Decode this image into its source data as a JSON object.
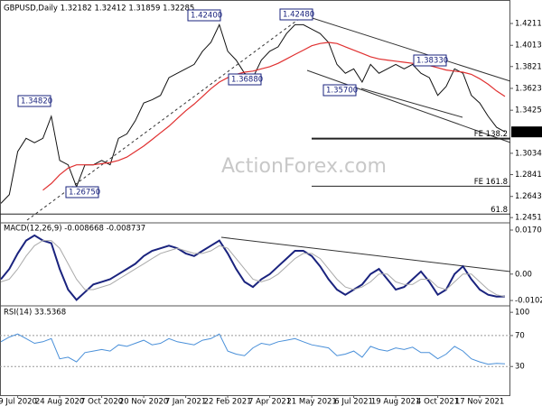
{
  "chart_data": [
    {
      "type": "line",
      "title": "GBPUSD,Daily  1.32182 1.32412 1.31859 1.32285",
      "ylim": [
        1.242,
        1.431
      ],
      "yticks": [
        1.42115,
        1.40135,
        {
          "value": 1.3821,
          "label": "1.38210"
        },
        {
          "value": 1.3623,
          "label": "1.36230"
        },
        {
          "value": 1.3425,
          "label": "1.34250"
        },
        1.30345,
        {
          "value": 1.2841,
          "label": "1.28410"
        },
        {
          "value": 1.2643,
          "label": "1.26430"
        },
        1.24515
      ],
      "last_price": 1.32285,
      "watermark": "ActionForex.com",
      "annotations": [
        "1.42400",
        "1.42480",
        "1.34820",
        "1.26750",
        "1.36880",
        "1.35700",
        "1.38330"
      ],
      "levels": [
        {
          "label": "FE 138.2",
          "value": 1.3168
        },
        {
          "label": "FE 161.8",
          "value": 1.2736
        },
        {
          "label": "61.8",
          "value": 1.2483
        }
      ],
      "series": [
        {
          "color": "#111111",
          "values": [
            1.258,
            1.266,
            1.305,
            1.317,
            1.313,
            1.317,
            1.337,
            1.297,
            1.293,
            1.273,
            1.293,
            1.293,
            1.297,
            1.293,
            1.317,
            1.321,
            1.333,
            1.349,
            1.352,
            1.356,
            1.372,
            1.376,
            1.38,
            1.384,
            1.396,
            1.404,
            1.42,
            1.396,
            1.388,
            1.376,
            1.372,
            1.388,
            1.396,
            1.4,
            1.412,
            1.42,
            1.42,
            1.416,
            1.412,
            1.404,
            1.384,
            1.376,
            1.38,
            1.368,
            1.384,
            1.376,
            1.38,
            1.384,
            1.38,
            1.384,
            1.376,
            1.372,
            1.356,
            1.364,
            1.38,
            1.376,
            1.356,
            1.349,
            1.337,
            1.327,
            1.32285
          ]
        },
        {
          "color": "#e03030",
          "values": [
            null,
            null,
            null,
            null,
            null,
            1.27,
            1.276,
            1.284,
            1.29,
            1.293,
            1.293,
            1.293,
            1.294,
            1.295,
            1.297,
            1.3,
            1.305,
            1.31,
            1.316,
            1.322,
            1.328,
            1.335,
            1.342,
            1.348,
            1.355,
            1.362,
            1.368,
            1.372,
            1.375,
            1.377,
            1.378,
            1.38,
            1.382,
            1.385,
            1.389,
            1.393,
            1.397,
            1.401,
            1.403,
            1.404,
            1.403,
            1.4,
            1.397,
            1.394,
            1.391,
            1.389,
            1.388,
            1.387,
            1.386,
            1.385,
            1.384,
            1.383,
            1.381,
            1.379,
            1.378,
            1.377,
            1.375,
            1.371,
            1.366,
            1.36,
            1.355
          ]
        }
      ]
    },
    {
      "type": "line",
      "title": "MACD(12,26,9) -0.008668 -0.008737",
      "ylim": [
        -0.0116,
        0.0188
      ],
      "yticks": [
        0.017057,
        {
          "value": 0,
          "label": "0.00"
        },
        -0.010219
      ],
      "series": [
        {
          "color": "#1a237e",
          "values": [
            -0.002,
            0.002,
            0.008,
            0.013,
            0.015,
            0.013,
            0.012,
            0.002,
            -0.006,
            -0.01,
            -0.007,
            -0.004,
            -0.003,
            -0.002,
            0,
            0.002,
            0.004,
            0.007,
            0.009,
            0.01,
            0.011,
            0.01,
            0.008,
            0.007,
            0.009,
            0.011,
            0.013,
            0.008,
            0.002,
            -0.003,
            -0.005,
            -0.002,
            0,
            0.003,
            0.006,
            0.009,
            0.009,
            0.007,
            0.003,
            -0.002,
            -0.006,
            -0.008,
            -0.006,
            -0.004,
            0,
            0.002,
            -0.002,
            -0.006,
            -0.005,
            -0.002,
            0.001,
            -0.003,
            -0.008,
            -0.006,
            0,
            0.003,
            -0.002,
            -0.006,
            -0.008,
            -0.0087,
            -0.008668
          ]
        },
        {
          "color": "#aaaaaa",
          "values": [
            -0.003,
            -0.002,
            0.002,
            0.007,
            0.011,
            0.013,
            0.013,
            0.01,
            0.004,
            -0.002,
            -0.006,
            -0.006,
            -0.005,
            -0.004,
            -0.002,
            0,
            0.002,
            0.004,
            0.006,
            0.008,
            0.009,
            0.01,
            0.009,
            0.008,
            0.008,
            0.009,
            0.011,
            0.01,
            0.006,
            0.002,
            -0.002,
            -0.003,
            -0.002,
            0,
            0.003,
            0.006,
            0.008,
            0.008,
            0.006,
            0.002,
            -0.002,
            -0.005,
            -0.006,
            -0.005,
            -0.003,
            0,
            0,
            -0.003,
            -0.004,
            -0.004,
            -0.002,
            -0.002,
            -0.005,
            -0.006,
            -0.003,
            0,
            0,
            -0.003,
            -0.006,
            -0.008,
            -0.008737
          ]
        }
      ]
    },
    {
      "type": "line",
      "title": "RSI(14) 33.5368",
      "ylim": [
        -7,
        106
      ],
      "yticks": [
        100,
        70,
        30
      ],
      "categories": [
        null,
        null,
        "9 Jul 2020",
        null,
        null,
        null,
        null,
        "24 Aug 2020",
        null,
        null,
        null,
        null,
        "7 Oct 2020",
        null,
        null,
        null,
        null,
        "20 Nov 2020",
        null,
        null,
        null,
        null,
        "7 Jan 2021",
        null,
        null,
        null,
        null,
        "22 Feb 2021",
        null,
        null,
        null,
        null,
        "7 Apr 2021",
        null,
        null,
        null,
        null,
        "21 May 2021",
        null,
        null,
        null,
        null,
        "6 Jul 2021",
        null,
        null,
        null,
        null,
        "19 Aug 2021",
        null,
        null,
        null,
        null,
        "4 Oct 2021",
        null,
        null,
        null,
        null,
        "17 Nov 2021",
        null,
        null,
        null
      ],
      "series": [
        {
          "color": "#4a90d9",
          "values": [
            62,
            68,
            72,
            66,
            60,
            62,
            66,
            40,
            42,
            36,
            48,
            50,
            52,
            50,
            58,
            56,
            60,
            64,
            58,
            60,
            66,
            62,
            60,
            58,
            64,
            66,
            72,
            50,
            46,
            44,
            54,
            60,
            58,
            62,
            64,
            66,
            62,
            58,
            56,
            54,
            44,
            46,
            50,
            42,
            56,
            52,
            50,
            54,
            52,
            55,
            48,
            48,
            40,
            46,
            56,
            50,
            40,
            36,
            33,
            34,
            33.5368
          ]
        }
      ]
    }
  ]
}
